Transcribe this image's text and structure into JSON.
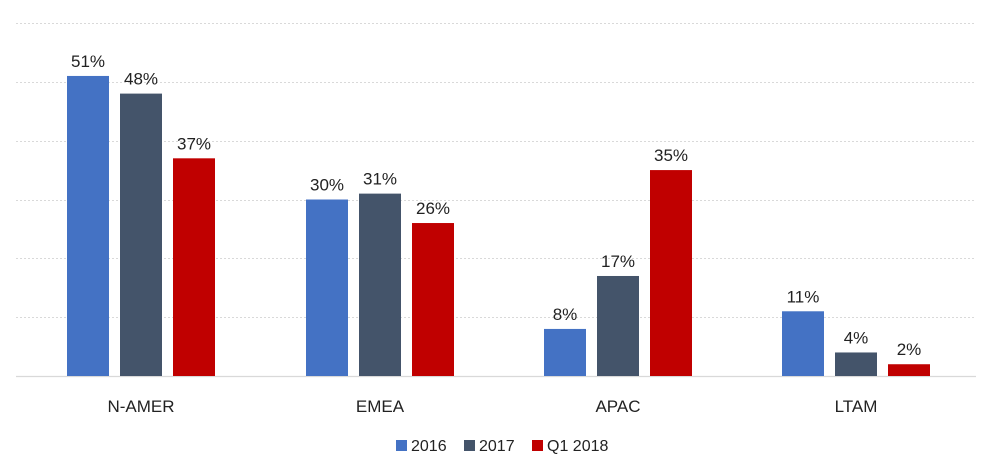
{
  "chart_data": {
    "type": "bar",
    "categories": [
      "N-AMER",
      "EMEA",
      "APAC",
      "LTAM"
    ],
    "series": [
      {
        "name": "2016",
        "values": [
          51,
          30,
          8,
          11
        ],
        "color": "#4472c4"
      },
      {
        "name": "2017",
        "values": [
          48,
          31,
          17,
          4
        ],
        "color": "#44546a"
      },
      {
        "name": "Q1 2018",
        "values": [
          37,
          26,
          35,
          2
        ],
        "color": "#c00000"
      }
    ],
    "value_suffix": "%",
    "ylim": [
      0,
      60
    ],
    "y_tick_step": 10,
    "y_tick_labels_shown": false,
    "grid": true,
    "legend_position": "bottom",
    "title": "",
    "xlabel": "",
    "ylabel": ""
  }
}
